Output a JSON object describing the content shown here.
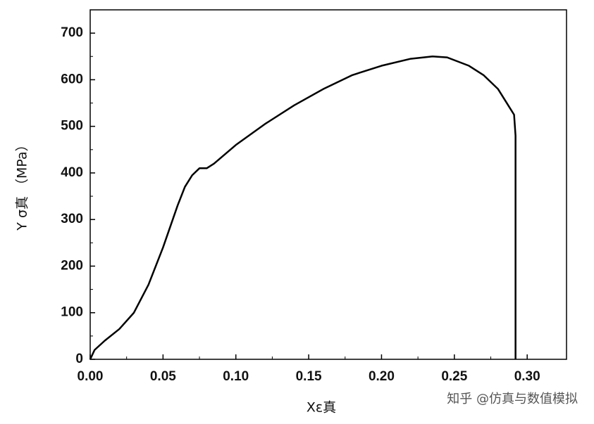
{
  "chart_data": {
    "type": "line",
    "x_label": "Xε真",
    "y_label": "Y σ真 （MPa）",
    "annotation": "知乎 @仿真与数值模拟",
    "x": [
      0,
      0.003,
      0.01,
      0.02,
      0.03,
      0.04,
      0.05,
      0.06,
      0.065,
      0.07,
      0.075,
      0.08,
      0.085,
      0.1,
      0.12,
      0.14,
      0.16,
      0.18,
      0.2,
      0.22,
      0.235,
      0.245,
      0.26,
      0.27,
      0.28,
      0.288,
      0.291,
      0.292,
      0.292
    ],
    "series": [
      {
        "color": "#000000",
        "values": [
          0,
          20,
          40,
          65,
          100,
          160,
          240,
          330,
          370,
          395,
          410,
          410,
          420,
          460,
          505,
          545,
          580,
          610,
          630,
          645,
          650,
          648,
          630,
          610,
          580,
          540,
          525,
          480,
          0
        ]
      }
    ],
    "xlim": [
      0,
      0.327
    ],
    "ylim": [
      0,
      750
    ],
    "xticks": [
      {
        "value": 0,
        "label": "0.00"
      },
      {
        "value": 0.05,
        "label": "0.05"
      },
      {
        "value": 0.1,
        "label": "0.10"
      },
      {
        "value": 0.15,
        "label": "0.15"
      },
      {
        "value": 0.2,
        "label": "0.20"
      },
      {
        "value": 0.25,
        "label": "0.25"
      },
      {
        "value": 0.3,
        "label": "0.30"
      }
    ],
    "yticks": [
      0,
      100,
      200,
      300,
      400,
      500,
      600,
      700
    ]
  }
}
